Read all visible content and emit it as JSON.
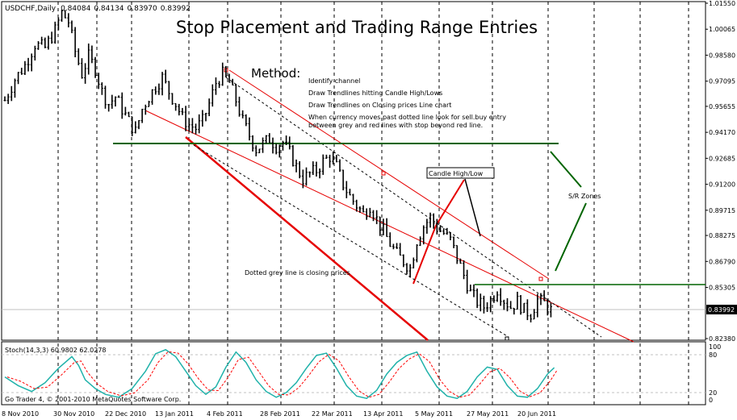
{
  "symbol_header": "USDCHF,Daily",
  "ohlc": {
    "open": "0.84084",
    "high": "0.84134",
    "low": "0.83970",
    "close": "0.83992"
  },
  "title": "Stop Placement  and Trading Range Entries",
  "method": {
    "heading": "Method:",
    "steps": [
      "Identify channel",
      "Draw Trendlines hitting Candle High/Lows",
      "Draw Trendlines on Closing prices Line chart",
      "When currency moves past  dotted line look for sell.buy entry",
      "between grey and red lines with stop beyond red line."
    ]
  },
  "annotations": {
    "candle_label": "Candle High/Low",
    "sr_label": "S/R Zones",
    "dotted_label": "Dotted grey line is closing prices"
  },
  "stoch_header": "Stoch(14,3,3) 60.9802 62.0278",
  "copyright": "Go Trader 4, © 2001-2010 MetaQuotes Software Corp.",
  "current_price_label": "0.83992",
  "colors": {
    "channel_red": "#e60000",
    "sr_green": "#006400",
    "stoch_main": "#20b2aa",
    "stoch_signal": "#ff0000",
    "bars": "#000000"
  },
  "chart_data": {
    "type": "ohlc",
    "x_labels": [
      "8 Nov 2010",
      "30 Nov 2010",
      "22 Dec 2010",
      "13 Jan 2011",
      "4 Feb 2011",
      "28 Feb 2011",
      "22 Mar 2011",
      "13 Apr 2011",
      "5 May 2011",
      "27 May 2011",
      "20 Jun 2011"
    ],
    "y_ticks": [
      "1.01550",
      "1.00065",
      "0.98580",
      "0.97095",
      "0.95655",
      "0.94170",
      "0.92685",
      "0.91200",
      "0.89715",
      "0.88275",
      "0.86790",
      "0.85305",
      "0.83992",
      "0.82380"
    ],
    "ylim": [
      0.8238,
      1.0155
    ],
    "current_price": 0.83992,
    "close_path": [
      [
        0,
        0.96
      ],
      [
        3,
        0.972
      ],
      [
        6,
        0.98
      ],
      [
        9,
        0.992
      ],
      [
        12,
        0.99
      ],
      [
        15,
        1.0
      ],
      [
        17,
        1.01
      ],
      [
        19,
        1.005
      ],
      [
        21,
        0.988
      ],
      [
        23,
        0.975
      ],
      [
        25,
        0.985
      ],
      [
        27,
        0.978
      ],
      [
        29,
        0.965
      ],
      [
        31,
        0.958
      ],
      [
        33,
        0.962
      ],
      [
        35,
        0.955
      ],
      [
        37,
        0.948
      ],
      [
        39,
        0.942
      ],
      [
        41,
        0.955
      ],
      [
        43,
        0.962
      ],
      [
        45,
        0.968
      ],
      [
        47,
        0.973
      ],
      [
        49,
        0.965
      ],
      [
        51,
        0.958
      ],
      [
        53,
        0.95
      ],
      [
        55,
        0.946
      ],
      [
        57,
        0.944
      ],
      [
        59,
        0.948
      ],
      [
        61,
        0.958
      ],
      [
        63,
        0.97
      ],
      [
        65,
        0.975
      ],
      [
        67,
        0.97
      ],
      [
        69,
        0.96
      ],
      [
        71,
        0.948
      ],
      [
        73,
        0.94
      ],
      [
        75,
        0.932
      ],
      [
        77,
        0.935
      ],
      [
        79,
        0.938
      ],
      [
        81,
        0.934
      ],
      [
        83,
        0.936
      ],
      [
        85,
        0.93
      ],
      [
        87,
        0.922
      ],
      [
        89,
        0.915
      ],
      [
        91,
        0.918
      ],
      [
        93,
        0.92
      ],
      [
        95,
        0.925
      ],
      [
        97,
        0.928
      ],
      [
        99,
        0.922
      ],
      [
        101,
        0.912
      ],
      [
        103,
        0.905
      ],
      [
        105,
        0.9
      ],
      [
        107,
        0.895
      ],
      [
        109,
        0.9
      ],
      [
        111,
        0.892
      ],
      [
        113,
        0.885
      ],
      [
        115,
        0.878
      ],
      [
        117,
        0.872
      ],
      [
        119,
        0.868
      ],
      [
        121,
        0.864
      ],
      [
        123,
        0.88
      ],
      [
        125,
        0.888
      ],
      [
        127,
        0.893
      ],
      [
        129,
        0.887
      ],
      [
        131,
        0.884
      ],
      [
        133,
        0.88
      ],
      [
        135,
        0.87
      ],
      [
        137,
        0.86
      ],
      [
        139,
        0.85
      ],
      [
        141,
        0.845
      ],
      [
        143,
        0.842
      ],
      [
        145,
        0.846
      ],
      [
        147,
        0.852
      ],
      [
        149,
        0.846
      ],
      [
        151,
        0.842
      ],
      [
        153,
        0.845
      ],
      [
        155,
        0.84
      ],
      [
        157,
        0.838
      ],
      [
        159,
        0.846
      ],
      [
        161,
        0.844
      ],
      [
        163,
        0.84
      ]
    ],
    "stochastic": {
      "name": "Stoch(14,3,3)",
      "main": 60.9802,
      "signal": 62.0278,
      "levels": [
        80,
        20
      ],
      "ylim": [
        0,
        100
      ],
      "path": [
        [
          0,
          45
        ],
        [
          4,
          30
        ],
        [
          8,
          20
        ],
        [
          12,
          35
        ],
        [
          16,
          60
        ],
        [
          20,
          80
        ],
        [
          22,
          65
        ],
        [
          24,
          40
        ],
        [
          27,
          25
        ],
        [
          30,
          15
        ],
        [
          34,
          10
        ],
        [
          38,
          25
        ],
        [
          42,
          55
        ],
        [
          45,
          85
        ],
        [
          48,
          92
        ],
        [
          51,
          80
        ],
        [
          54,
          55
        ],
        [
          57,
          30
        ],
        [
          60,
          15
        ],
        [
          63,
          28
        ],
        [
          66,
          62
        ],
        [
          69,
          88
        ],
        [
          72,
          70
        ],
        [
          75,
          40
        ],
        [
          78,
          20
        ],
        [
          81,
          10
        ],
        [
          84,
          18
        ],
        [
          87,
          35
        ],
        [
          90,
          60
        ],
        [
          93,
          82
        ],
        [
          96,
          86
        ],
        [
          99,
          60
        ],
        [
          102,
          30
        ],
        [
          105,
          12
        ],
        [
          108,
          8
        ],
        [
          111,
          22
        ],
        [
          114,
          50
        ],
        [
          117,
          70
        ],
        [
          120,
          82
        ],
        [
          123,
          88
        ],
        [
          126,
          55
        ],
        [
          129,
          28
        ],
        [
          132,
          12
        ],
        [
          135,
          8
        ],
        [
          138,
          20
        ],
        [
          141,
          45
        ],
        [
          144,
          62
        ],
        [
          147,
          58
        ],
        [
          150,
          30
        ],
        [
          153,
          12
        ],
        [
          156,
          10
        ],
        [
          159,
          25
        ],
        [
          162,
          50
        ],
        [
          164,
          61
        ]
      ]
    }
  }
}
